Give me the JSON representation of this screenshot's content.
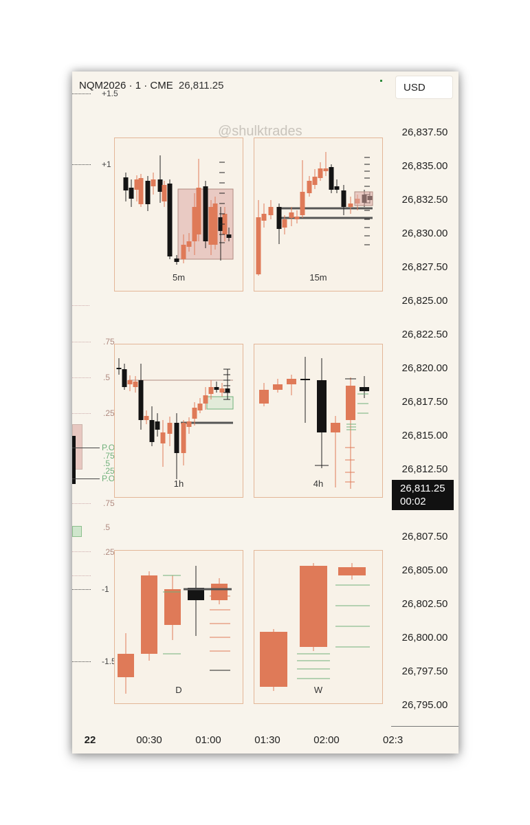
{
  "header": {
    "symbol": "NQM2026 · 1 · CME",
    "price": "26,811.25",
    "currency_button": "USD"
  },
  "watermark": "@shulktrades",
  "price_axis": {
    "labels": [
      "26,837.50",
      "26,835.00",
      "26,832.50",
      "26,830.00",
      "26,827.50",
      "26,825.00",
      "26,822.50",
      "26,820.00",
      "26,817.50",
      "26,815.00",
      "26,812.50",
      "26,807.50",
      "26,805.00",
      "26,802.50",
      "26,800.00",
      "26,797.50",
      "26,795.00"
    ],
    "current_price": "26,811.25",
    "countdown": "00:02"
  },
  "time_axis": {
    "labels": [
      "22",
      "00:30",
      "01:00",
      "01:30",
      "02:00",
      "02:3"
    ]
  },
  "left_levels": [
    "+1.5",
    "+1",
    ".75",
    ".5",
    ".25",
    "P.O",
    ".75",
    ".5",
    ".25",
    "P.O",
    ".75",
    ".5",
    ".25",
    "-1",
    "-1.5"
  ],
  "colors": {
    "bull": "#df7a58",
    "bear": "#141414",
    "panel_border": "#e3b596",
    "fvg": "#ddaaa4",
    "green_zone": "#cfe6cc"
  },
  "chart_data": [
    {
      "type": "candlestick",
      "label": "5m"
    },
    {
      "type": "candlestick",
      "label": "15m"
    },
    {
      "type": "candlestick",
      "label": "1h"
    },
    {
      "type": "candlestick",
      "label": "4h"
    },
    {
      "type": "candlestick",
      "label": "D"
    },
    {
      "type": "candlestick",
      "label": "W"
    }
  ]
}
